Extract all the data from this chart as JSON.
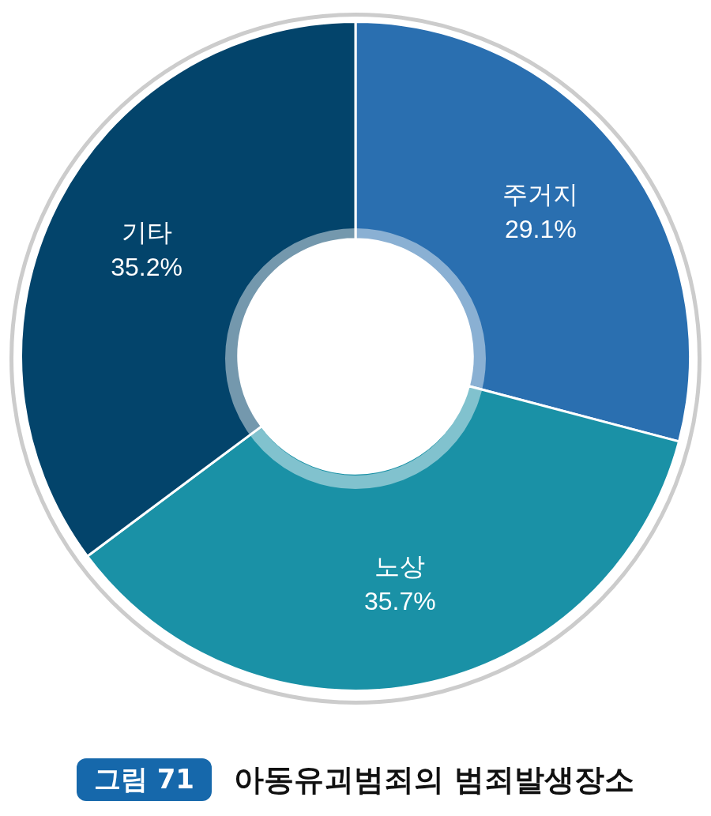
{
  "chart_data": {
    "type": "donut",
    "title": "아동유괴범죄의 범죄발생장소",
    "annotations": [
      "그림 71"
    ],
    "categories": [
      "주거지",
      "노상",
      "기타"
    ],
    "values": [
      29.1,
      35.7,
      35.2
    ],
    "colors": [
      "#2a6fb0",
      "#1a91a6",
      "#03446b"
    ],
    "value_labels": [
      "29.1%",
      "35.7%",
      "35.2%"
    ],
    "legend": false
  }
}
